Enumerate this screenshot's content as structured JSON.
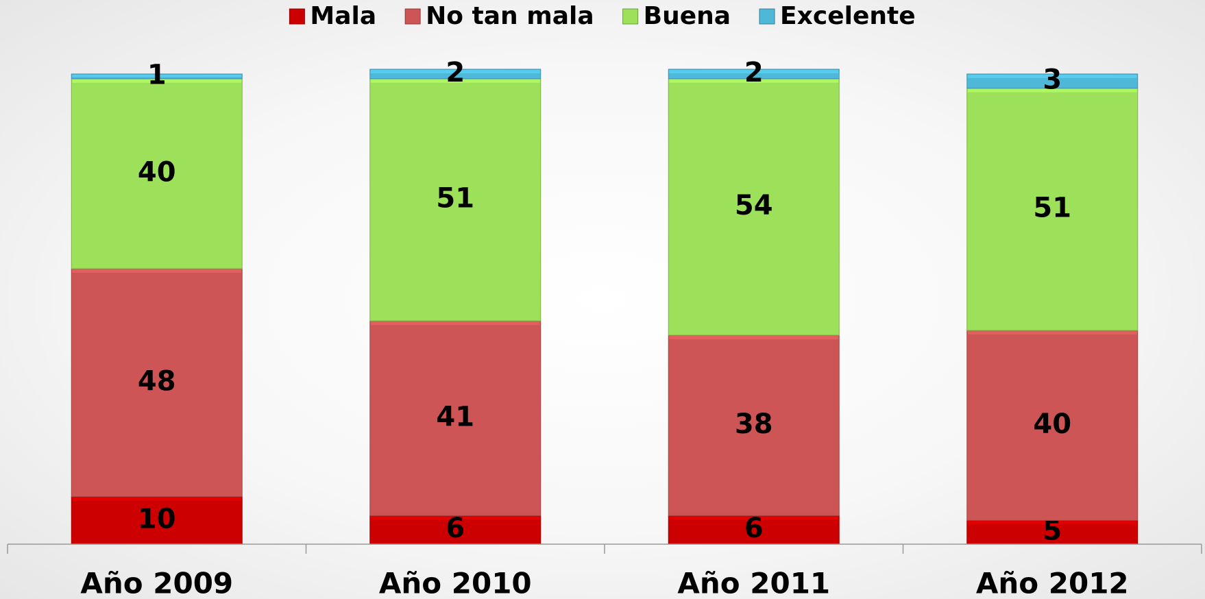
{
  "chart_data": {
    "type": "stacked_bar",
    "categories": [
      "Año 2009",
      "Año 2010",
      "Año 2011",
      "Año 2012"
    ],
    "series": [
      {
        "name": "Mala",
        "color": "#cc0000",
        "values": [
          10,
          6,
          6,
          5
        ]
      },
      {
        "name": "No tan mala",
        "color": "#cd5555",
        "values": [
          48,
          41,
          38,
          40
        ]
      },
      {
        "name": "Buena",
        "color": "#9de05a",
        "values": [
          40,
          51,
          54,
          51
        ]
      },
      {
        "name": "Excelente",
        "color": "#4fb8d8",
        "values": [
          1,
          2,
          2,
          3
        ]
      }
    ],
    "legend": "top"
  }
}
